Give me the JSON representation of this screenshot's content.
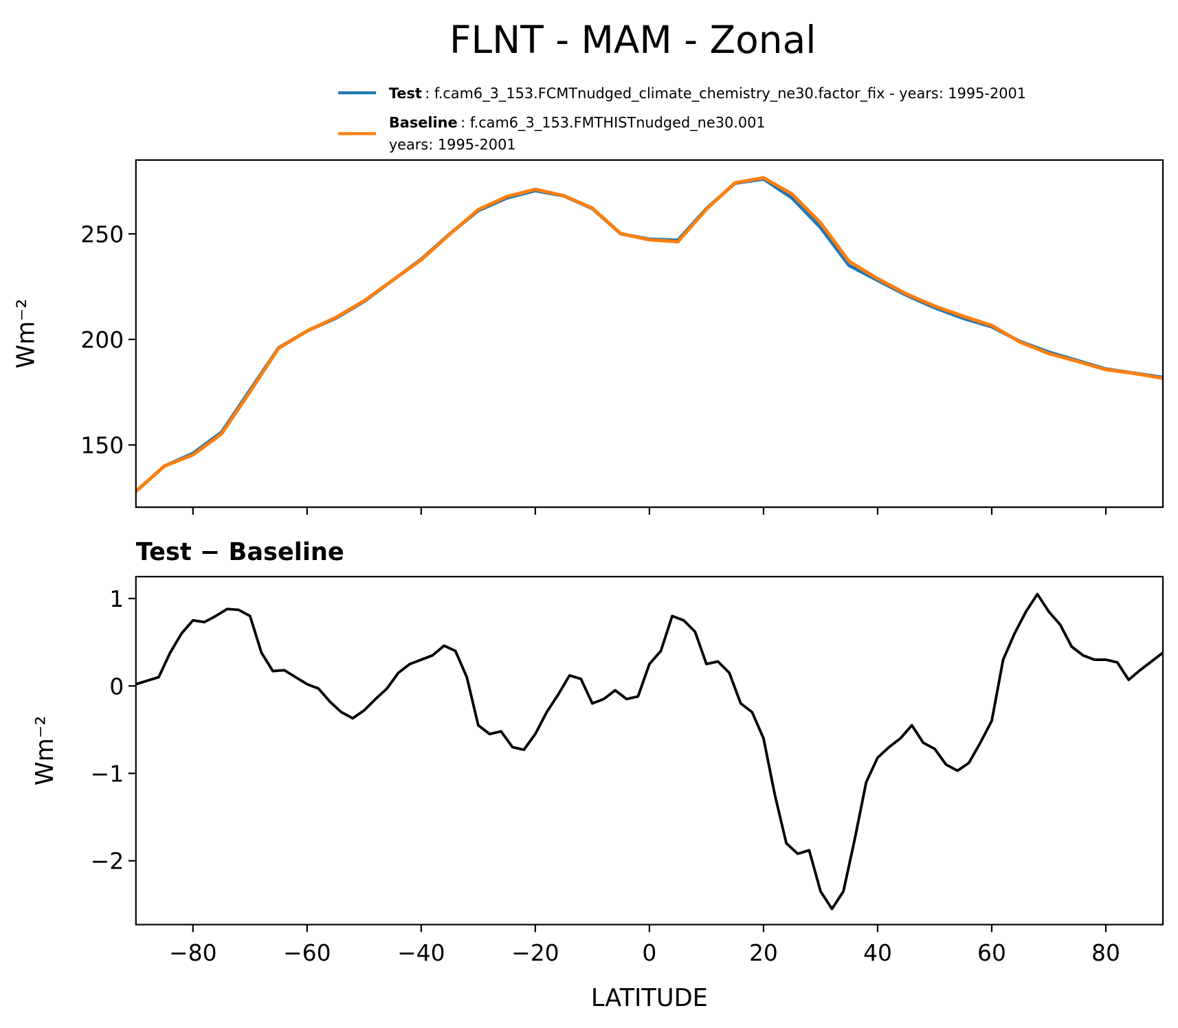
{
  "chart_data": [
    {
      "type": "line",
      "title": "FLNT - MAM - Zonal",
      "ylabel": "Wm⁻²",
      "x": [
        -90,
        -85,
        -80,
        -75,
        -70,
        -65,
        -60,
        -55,
        -50,
        -45,
        -40,
        -35,
        -30,
        -25,
        -20,
        -15,
        -10,
        -5,
        0,
        5,
        10,
        15,
        20,
        25,
        30,
        35,
        40,
        45,
        50,
        55,
        60,
        65,
        70,
        75,
        80,
        85,
        90
      ],
      "series": [
        {
          "name": "Test",
          "label": ": f.cam6_3_153.FCMTnudged_climate_chemistry_ne30.factor_fix - years: 1995-2001",
          "color": "#1f77b4",
          "values": [
            128,
            140,
            146,
            156,
            176,
            196,
            204,
            210,
            218,
            228,
            238,
            250,
            261,
            267,
            270.5,
            268,
            262,
            250,
            247.5,
            247,
            262,
            274,
            276,
            267,
            253,
            235,
            228,
            221,
            215,
            210,
            206,
            199,
            194,
            190,
            186,
            184,
            182
          ]
        },
        {
          "name": "Baseline",
          "label": [
            ": f.cam6_3_153.FMTHISTnudged_ne30.001",
            "years: 1995-2001"
          ],
          "color": "#ff7f0e",
          "values": [
            128,
            140,
            145.3,
            155.2,
            175.2,
            195.8,
            204,
            210.3,
            218.3,
            228,
            237.7,
            249.8,
            261.5,
            267.7,
            271.1,
            268.1,
            262.2,
            250.1,
            247.2,
            246.3,
            261.7,
            274.2,
            276.6,
            268.9,
            255.3,
            237,
            228.8,
            221.6,
            215.8,
            211,
            206.6,
            198.7,
            193.3,
            189.6,
            185.7,
            183.9,
            181.6
          ]
        }
      ],
      "xlim": [
        -90,
        90
      ],
      "xticks": [
        {
          "value": -80,
          "label": "−80"
        },
        {
          "value": -60,
          "label": "−60"
        },
        {
          "value": -40,
          "label": "−40"
        },
        {
          "value": -20,
          "label": "−20"
        },
        0,
        20,
        40,
        60,
        80
      ],
      "xticklabels": false,
      "ylim": [
        120.5,
        285
      ],
      "yticks": [
        150,
        200,
        250
      ]
    },
    {
      "type": "line",
      "subtitle": "Test − Baseline",
      "ylabel": "Wm⁻²",
      "xlabel": "LATITUDE",
      "x": [
        -90,
        -88,
        -86,
        -84,
        -82,
        -80,
        -78,
        -76,
        -74,
        -72,
        -70,
        -68,
        -66,
        -64,
        -62,
        -60,
        -58,
        -56,
        -54,
        -52,
        -50,
        -48,
        -46,
        -44,
        -42,
        -40,
        -38,
        -36,
        -34,
        -32,
        -30,
        -28,
        -26,
        -24,
        -22,
        -20,
        -18,
        -16,
        -14,
        -12,
        -10,
        -8,
        -6,
        -4,
        -2,
        0,
        2,
        4,
        6,
        8,
        10,
        12,
        14,
        16,
        18,
        20,
        22,
        24,
        26,
        28,
        30,
        32,
        34,
        36,
        38,
        40,
        42,
        44,
        46,
        48,
        50,
        52,
        54,
        56,
        58,
        60,
        62,
        64,
        66,
        68,
        70,
        72,
        74,
        76,
        78,
        80,
        82,
        84,
        86,
        88,
        90
      ],
      "series": [
        {
          "name": "Test − Baseline",
          "color": "#000000",
          "values": [
            0.02,
            0.06,
            0.1,
            0.38,
            0.6,
            0.75,
            0.73,
            0.8,
            0.88,
            0.87,
            0.8,
            0.38,
            0.17,
            0.18,
            0.1,
            0.02,
            -0.03,
            -0.18,
            -0.3,
            -0.37,
            -0.28,
            -0.15,
            -0.03,
            0.15,
            0.25,
            0.3,
            0.35,
            0.46,
            0.4,
            0.1,
            -0.45,
            -0.55,
            -0.52,
            -0.7,
            -0.73,
            -0.55,
            -0.3,
            -0.1,
            0.12,
            0.08,
            -0.2,
            -0.15,
            -0.05,
            -0.15,
            -0.12,
            0.25,
            0.4,
            0.8,
            0.75,
            0.62,
            0.25,
            0.28,
            0.15,
            -0.2,
            -0.3,
            -0.6,
            -1.25,
            -1.8,
            -1.92,
            -1.88,
            -2.35,
            -2.55,
            -2.35,
            -1.75,
            -1.1,
            -0.82,
            -0.7,
            -0.6,
            -0.45,
            -0.65,
            -0.72,
            -0.9,
            -0.97,
            -0.88,
            -0.65,
            -0.4,
            0.3,
            0.6,
            0.85,
            1.05,
            0.85,
            0.7,
            0.45,
            0.35,
            0.3,
            0.3,
            0.27,
            0.07,
            0.18,
            0.28,
            0.38
          ]
        }
      ],
      "xlim": [
        -90,
        90
      ],
      "xticks": [
        {
          "value": -80,
          "label": "−80"
        },
        {
          "value": -60,
          "label": "−60"
        },
        {
          "value": -40,
          "label": "−40"
        },
        {
          "value": -20,
          "label": "−20"
        },
        0,
        20,
        40,
        60,
        80
      ],
      "xticklabels": true,
      "ylim": [
        -2.73,
        1.25
      ],
      "yticks": [
        {
          "value": -2,
          "label": "−2"
        },
        {
          "value": -1,
          "label": "−1"
        },
        0,
        1
      ]
    }
  ]
}
